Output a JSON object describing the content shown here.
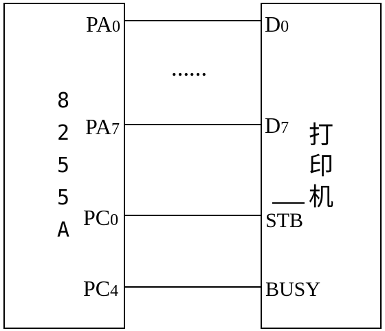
{
  "chip": {
    "name_chars": [
      "8",
      "2",
      "5",
      "5",
      "A"
    ],
    "pins": {
      "pa0": {
        "base": "PA",
        "sub": "0"
      },
      "pa7": {
        "base": "PA",
        "sub": "7"
      },
      "pc0": {
        "base": "PC",
        "sub": "0"
      },
      "pc4": {
        "base": "PC",
        "sub": "4"
      }
    }
  },
  "printer": {
    "name_chars": [
      "打",
      "印",
      "机"
    ],
    "pins": {
      "d0": {
        "base": "D",
        "sub": "0"
      },
      "d7": {
        "base": "D",
        "sub": "7"
      },
      "stb": "STB",
      "busy": "BUSY"
    }
  },
  "ellipsis": "……"
}
